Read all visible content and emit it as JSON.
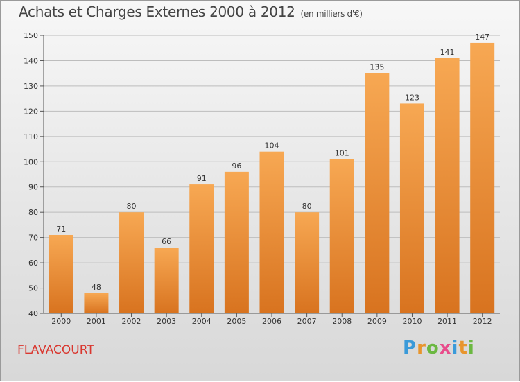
{
  "header": {
    "title": "Achats et Charges Externes 2000 à 2012",
    "subtitle": "(en milliers d'€)"
  },
  "footer": {
    "location": "FLAVACOURT",
    "logo_letters": [
      "P",
      "r",
      "o",
      "x",
      "i",
      "t",
      "i"
    ],
    "logo_colors": [
      "#3a9ad9",
      "#e8952d",
      "#6bb841",
      "#e84c8b",
      "#3a9ad9",
      "#e8952d",
      "#6bb841"
    ]
  },
  "colors": {
    "bar_top": "#f7a853",
    "bar_bottom": "#d8731f",
    "grid": "#bdbdbd",
    "axis": "#555555"
  },
  "chart_data": {
    "type": "bar",
    "categories": [
      "2000",
      "2001",
      "2002",
      "2003",
      "2004",
      "2005",
      "2006",
      "2007",
      "2008",
      "2009",
      "2010",
      "2011",
      "2012"
    ],
    "values": [
      71,
      48,
      80,
      66,
      91,
      96,
      104,
      80,
      101,
      135,
      123,
      141,
      147
    ],
    "ylim": [
      40,
      150
    ],
    "yticks": [
      40,
      50,
      60,
      70,
      80,
      90,
      100,
      110,
      120,
      130,
      140,
      150
    ],
    "grid": true,
    "title": "Achats et Charges Externes 2000 à 2012",
    "subtitle": "(en milliers d'€)",
    "xlabel": "",
    "ylabel": ""
  }
}
